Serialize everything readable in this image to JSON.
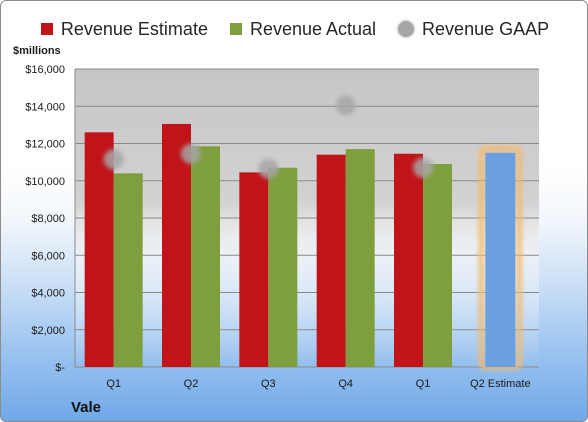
{
  "chart_data": {
    "type": "bar",
    "categories": [
      "Q1",
      "Q2",
      "Q3",
      "Q4",
      "Q1",
      "Q2 Estimate"
    ],
    "series": [
      {
        "name": "Revenue Estimate",
        "color": "#c0141a",
        "values": [
          12600,
          13050,
          10450,
          11400,
          11450,
          null
        ]
      },
      {
        "name": "Revenue Actual",
        "color": "#7f9e3e",
        "values": [
          10400,
          11850,
          10700,
          11700,
          10900,
          null
        ]
      },
      {
        "name": "Revenue GAAP",
        "color": "#a6a6a6",
        "marker": "circle",
        "values": [
          11150,
          11450,
          10650,
          14050,
          10700,
          null
        ]
      }
    ],
    "estimate_bar": {
      "category": "Q2 Estimate",
      "value": 11500,
      "color": "#6a9fe0",
      "glow_color": "#f4b96b"
    },
    "ylim": [
      0,
      16000
    ],
    "yticks": [
      0,
      2000,
      4000,
      6000,
      8000,
      10000,
      12000,
      14000,
      16000
    ],
    "ytick_labels": [
      "$-",
      "$2,000",
      "$4,000",
      "$6,000",
      "$8,000",
      "$10,000",
      "$12,000",
      "$14,000",
      "$16,000"
    ],
    "ylabel": "$millions",
    "xlabel": "",
    "title": "",
    "company": "Vale",
    "legend_position": "top",
    "grid": true
  }
}
